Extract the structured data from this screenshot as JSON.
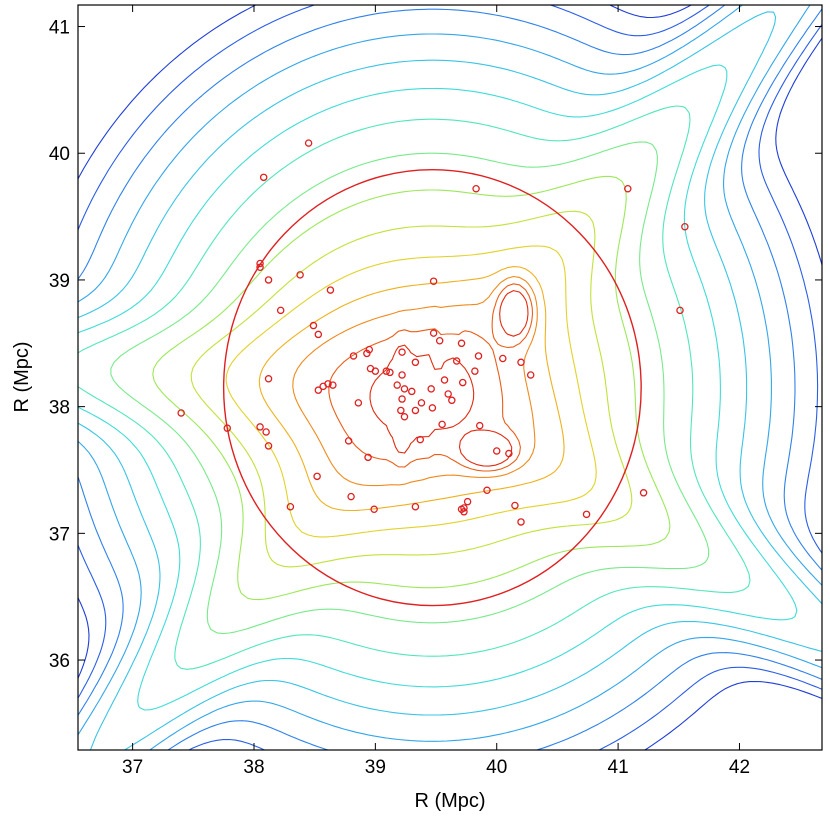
{
  "chart_data": {
    "type": "contour",
    "title": "",
    "xlabel": "R (Mpc)",
    "ylabel": "R (Mpc)",
    "xlim": [
      36.55,
      42.68
    ],
    "ylim": [
      35.29,
      41.17
    ],
    "x_ticks": [
      37,
      38,
      39,
      40,
      41,
      42
    ],
    "y_ticks": [
      36,
      37,
      38,
      39,
      40,
      41
    ],
    "grid": false,
    "legend": "none",
    "colors": {
      "low_density": "#2b50e0",
      "mid_low": "#3aa8e8",
      "mid": "#40e0d8",
      "mid_high": "#8be85a",
      "high": "#f0d020",
      "peak": "#e02010",
      "galaxy_marker": "#e02020",
      "aperture_circle": "#e02020"
    },
    "aperture_circle": {
      "cx": 39.47,
      "cy": 38.15,
      "r": 1.72
    },
    "density_peaks": [
      {
        "x": 39.22,
        "y": 38.05,
        "sx": 0.04,
        "sy": 0.22,
        "amp": 1.0
      },
      {
        "x": 40.15,
        "y": 38.75,
        "sx": 0.09,
        "sy": 0.14,
        "amp": 0.95
      },
      {
        "x": 39.93,
        "y": 37.65,
        "sx": 0.14,
        "sy": 0.09,
        "amp": 0.9
      },
      {
        "x": 39.55,
        "y": 38.07,
        "sx": 0.1,
        "sy": 0.1,
        "amp": 0.55
      },
      {
        "x": 39.3,
        "y": 38.1,
        "sx": 0.75,
        "sy": 0.55,
        "amp": 0.45
      }
    ],
    "galaxies": {
      "x": [
        38.45,
        38.08,
        39.83,
        38.05,
        38.05,
        38.12,
        38.38,
        38.63,
        39.48,
        38.22,
        38.49,
        38.53,
        38.82,
        38.95,
        38.93,
        38.96,
        39.22,
        39.48,
        39.71,
        39.53,
        39.85,
        39.82,
        39.67,
        39.0,
        39.12,
        39.33,
        38.12,
        38.57,
        38.61,
        38.65,
        38.53,
        38.86,
        39.09,
        39.22,
        39.18,
        39.24,
        39.22,
        39.3,
        39.21,
        39.24,
        39.33,
        39.38,
        39.46,
        39.57,
        39.47,
        39.6,
        39.63,
        39.55,
        39.72,
        40.2,
        40.28,
        37.4,
        37.78,
        38.05,
        38.1,
        38.12,
        38.78,
        38.94,
        39.37,
        39.86,
        40.0,
        40.1,
        38.52,
        38.8,
        38.3,
        38.99,
        39.33,
        39.73,
        39.73,
        39.76,
        39.71,
        39.92,
        40.15,
        40.2,
        40.74,
        41.21,
        41.08,
        41.55,
        41.51,
        40.05
      ],
      "y": [
        40.08,
        39.81,
        39.72,
        39.13,
        39.1,
        39.0,
        39.04,
        38.92,
        38.99,
        38.76,
        38.64,
        38.57,
        38.4,
        38.45,
        38.42,
        38.3,
        38.43,
        38.58,
        38.5,
        38.52,
        38.4,
        38.28,
        38.36,
        38.28,
        38.27,
        38.35,
        38.22,
        38.16,
        38.18,
        38.17,
        38.13,
        38.03,
        38.28,
        38.25,
        38.17,
        38.14,
        38.06,
        38.12,
        37.97,
        37.92,
        37.97,
        38.03,
        38.14,
        38.21,
        37.99,
        38.1,
        38.05,
        37.86,
        38.19,
        38.35,
        38.25,
        37.95,
        37.83,
        37.84,
        37.8,
        37.69,
        37.73,
        37.6,
        37.74,
        37.85,
        37.65,
        37.63,
        37.45,
        37.29,
        37.21,
        37.19,
        37.21,
        37.2,
        37.17,
        37.25,
        37.19,
        37.34,
        37.22,
        37.09,
        37.15,
        37.32,
        39.72,
        39.42,
        38.76,
        38.38
      ]
    }
  }
}
